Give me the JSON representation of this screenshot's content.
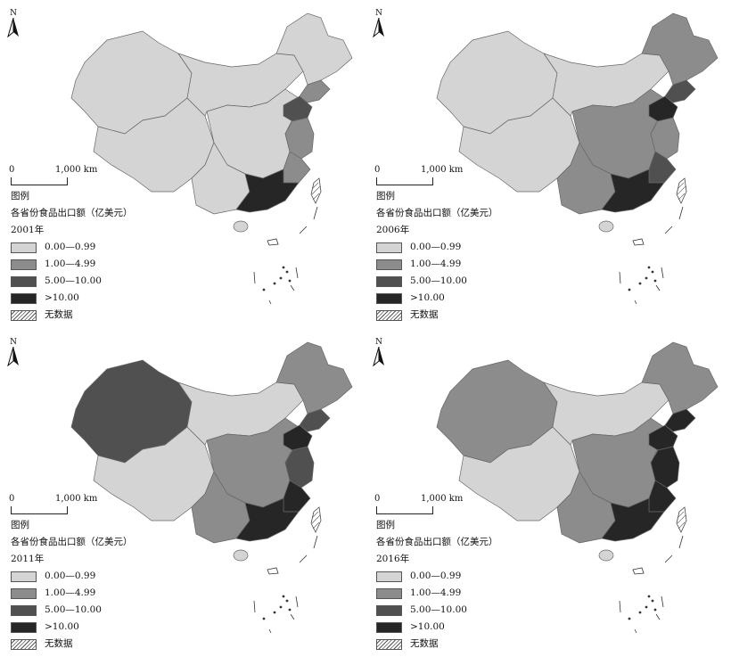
{
  "north_label": "N",
  "scale": {
    "zero": "0",
    "distance": "1,000 km"
  },
  "legend": {
    "title": "图例",
    "subtitle": "各省份食品出口额（亿美元）",
    "classes": [
      {
        "label": "0.00—0.99",
        "color": "#d4d4d4"
      },
      {
        "label": "1.00—4.99",
        "color": "#8c8c8c"
      },
      {
        "label": "5.00—10.00",
        "color": "#505050"
      },
      {
        "label": ">10.00",
        "color": "#262626"
      }
    ],
    "nodata": "无数据"
  },
  "panels": [
    {
      "year": "2001年",
      "mainland": "#d4d4d4",
      "northeast": "#d4d4d4",
      "liaoning": "#8c8c8c",
      "shandong": "#505050",
      "jiangsu": "#8c8c8c",
      "fujian": "#8c8c8c",
      "guangdong": "#262626",
      "xinjiang": "#d4d4d4",
      "central": "#d4d4d4",
      "southwest": "#d4d4d4"
    },
    {
      "year": "2006年",
      "mainland": "#d4d4d4",
      "northeast": "#8c8c8c",
      "liaoning": "#505050",
      "shandong": "#262626",
      "jiangsu": "#8c8c8c",
      "fujian": "#505050",
      "guangdong": "#262626",
      "xinjiang": "#d4d4d4",
      "central": "#8c8c8c",
      "southwest": "#8c8c8c"
    },
    {
      "year": "2011年",
      "mainland": "#d4d4d4",
      "northeast": "#8c8c8c",
      "liaoning": "#505050",
      "shandong": "#262626",
      "jiangsu": "#505050",
      "fujian": "#262626",
      "guangdong": "#262626",
      "xinjiang": "#505050",
      "central": "#8c8c8c",
      "southwest": "#8c8c8c"
    },
    {
      "year": "2016年",
      "mainland": "#d4d4d4",
      "northeast": "#8c8c8c",
      "liaoning": "#262626",
      "shandong": "#262626",
      "jiangsu": "#262626",
      "fujian": "#262626",
      "guangdong": "#262626",
      "xinjiang": "#8c8c8c",
      "central": "#8c8c8c",
      "southwest": "#8c8c8c"
    }
  ]
}
